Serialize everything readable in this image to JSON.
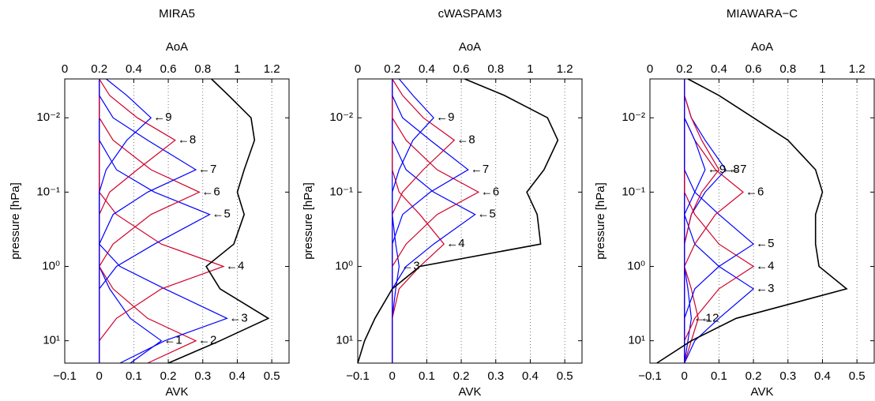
{
  "chart_data": [
    {
      "type": "line",
      "title": "MIRA5",
      "xlabel": "AVK",
      "x2label": "AoA",
      "ylabel": "pressure [hPa]",
      "log_y": true,
      "grid": true,
      "xlim": [
        -0.1,
        0.55
      ],
      "x2lim": [
        0,
        1.3
      ],
      "ylim": [
        20,
        0.003
      ],
      "xticks": [
        {
          "value": -0.1,
          "label": "−0.1"
        },
        0,
        0.1,
        0.2,
        0.3,
        0.4,
        0.5
      ],
      "x2ticks": [
        0,
        0.2,
        0.4,
        0.6,
        0.8,
        1,
        1.2
      ],
      "yticks": [
        {
          "value": 0.01,
          "label": "10⁻²"
        },
        {
          "value": 0.1,
          "label": "10⁻¹"
        },
        {
          "value": 1,
          "label": "10⁰"
        },
        {
          "value": 10,
          "label": "10¹"
        }
      ],
      "y": [
        20,
        10,
        5,
        2,
        1,
        0.5,
        0.2,
        0.1,
        0.05,
        0.02,
        0.01,
        0.005,
        0.003
      ],
      "series": [
        {
          "name": "←1",
          "color": "#0000ff",
          "values": [
            0.09,
            0.18,
            0.09,
            0.03,
            0,
            0,
            0,
            0,
            0,
            0,
            0,
            0,
            0
          ]
        },
        {
          "name": "←2",
          "color": "#d0002a",
          "values": [
            0.14,
            0.28,
            0.14,
            0.04,
            0,
            0,
            0,
            0,
            0,
            0,
            0,
            0,
            0
          ]
        },
        {
          "name": "←3",
          "color": "#0000ff",
          "values": [
            0.06,
            0.19,
            0.37,
            0.19,
            0.06,
            0,
            0,
            0,
            0,
            0,
            0,
            0,
            0
          ]
        },
        {
          "name": "←4",
          "color": "#d0002a",
          "values": [
            0,
            0,
            0.05,
            0.18,
            0.36,
            0.18,
            0.05,
            0,
            0,
            0,
            0,
            0,
            0
          ]
        },
        {
          "name": "←5",
          "color": "#0000ff",
          "values": [
            0,
            0,
            0,
            0,
            0.05,
            0.16,
            0.32,
            0.16,
            0.05,
            0,
            0,
            0,
            0
          ]
        },
        {
          "name": "←6",
          "color": "#d0002a",
          "values": [
            0,
            0,
            0,
            0,
            0,
            0.04,
            0.15,
            0.29,
            0.15,
            0.04,
            0,
            0,
            0
          ]
        },
        {
          "name": "←7",
          "color": "#0000ff",
          "values": [
            0,
            0,
            0,
            0,
            0,
            0,
            0.04,
            0.14,
            0.28,
            0.14,
            0.04,
            0,
            0
          ]
        },
        {
          "name": "←8",
          "color": "#d0002a",
          "values": [
            0,
            0,
            0,
            0,
            0,
            0,
            0,
            0.03,
            0.11,
            0.22,
            0.11,
            0.03,
            0
          ]
        },
        {
          "name": "←9",
          "color": "#0000ff",
          "values": [
            0,
            0,
            0,
            0,
            0,
            0,
            0,
            0,
            0.02,
            0.08,
            0.15,
            0.08,
            0.02
          ]
        },
        {
          "name": "AoA",
          "axis": "x2",
          "color": "#000000",
          "values": [
            0.6,
            0.9,
            1.18,
            0.9,
            0.82,
            0.98,
            1.04,
            1.0,
            1.04,
            1.1,
            1.08,
            0.95,
            0.85
          ]
        }
      ]
    },
    {
      "type": "line",
      "title": "cWASPAM3",
      "xlabel": "AVK",
      "x2label": "AoA",
      "ylabel": "pressure [hPa]",
      "log_y": true,
      "grid": true,
      "xlim": [
        -0.1,
        0.55
      ],
      "x2lim": [
        0,
        1.3
      ],
      "ylim": [
        20,
        0.003
      ],
      "xticks": [
        {
          "value": -0.1,
          "label": "−0.1"
        },
        0,
        0.1,
        0.2,
        0.3,
        0.4,
        0.5
      ],
      "x2ticks": [
        0,
        0.2,
        0.4,
        0.6,
        0.8,
        1,
        1.2
      ],
      "yticks": [
        {
          "value": 0.01,
          "label": "10⁻²"
        },
        {
          "value": 0.1,
          "label": "10⁻¹"
        },
        {
          "value": 1,
          "label": "10⁰"
        },
        {
          "value": 10,
          "label": "10¹"
        }
      ],
      "y": [
        20,
        10,
        5,
        2,
        1,
        0.5,
        0.2,
        0.1,
        0.05,
        0.02,
        0.01,
        0.005,
        0.003
      ],
      "series": [
        {
          "name": "←3",
          "color": "#0000ff",
          "values": [
            0,
            0,
            0,
            0.01,
            0.02,
            0.01,
            0,
            0,
            0,
            0,
            0,
            0,
            0
          ]
        },
        {
          "name": "←4",
          "color": "#d0002a",
          "values": [
            0,
            0,
            0,
            0.02,
            0.08,
            0.15,
            0.08,
            0.02,
            0,
            0,
            0,
            0,
            0
          ]
        },
        {
          "name": "←5",
          "color": "#0000ff",
          "values": [
            0,
            0,
            0,
            0,
            0.04,
            0.12,
            0.24,
            0.12,
            0.04,
            0,
            0,
            0,
            0
          ]
        },
        {
          "name": "←6",
          "color": "#d0002a",
          "values": [
            0,
            0,
            0,
            0,
            0,
            0.04,
            0.13,
            0.25,
            0.13,
            0.04,
            0,
            0,
            0
          ]
        },
        {
          "name": "←7",
          "color": "#0000ff",
          "values": [
            0,
            0,
            0,
            0,
            0,
            0,
            0.03,
            0.11,
            0.22,
            0.11,
            0.03,
            0,
            0
          ]
        },
        {
          "name": "←8",
          "color": "#d0002a",
          "values": [
            0,
            0,
            0,
            0,
            0,
            0,
            0,
            0.03,
            0.09,
            0.18,
            0.09,
            0.03,
            0
          ]
        },
        {
          "name": "←9",
          "color": "#0000ff",
          "values": [
            0,
            0,
            0,
            0,
            0,
            0,
            0,
            0,
            0.02,
            0.06,
            0.12,
            0.06,
            0.02
          ]
        },
        {
          "name": "AoA",
          "axis": "x2",
          "color": "#000000",
          "values": [
            0.0,
            0.04,
            0.1,
            0.2,
            0.36,
            1.06,
            1.04,
            0.98,
            1.08,
            1.16,
            1.1,
            0.85,
            0.62
          ]
        }
      ]
    },
    {
      "type": "line",
      "title": "MIAWARA−C",
      "xlabel": "AVK",
      "x2label": "AoA",
      "ylabel": "pressure [hPa]",
      "log_y": true,
      "grid": true,
      "xlim": [
        -0.1,
        0.55
      ],
      "x2lim": [
        0,
        1.3
      ],
      "ylim": [
        20,
        0.003
      ],
      "xticks": [
        {
          "value": -0.1,
          "label": "−0.1"
        },
        0,
        0.1,
        0.2,
        0.3,
        0.4,
        0.5
      ],
      "x2ticks": [
        0,
        0.2,
        0.4,
        0.6,
        0.8,
        1,
        1.2
      ],
      "yticks": [
        {
          "value": 0.01,
          "label": "10⁻²"
        },
        {
          "value": 0.1,
          "label": "10⁻¹"
        },
        {
          "value": 1,
          "label": "10⁰"
        },
        {
          "value": 10,
          "label": "10¹"
        }
      ],
      "y": [
        20,
        10,
        5,
        2,
        1,
        0.5,
        0.2,
        0.1,
        0.05,
        0.02,
        0.01,
        0.005,
        0.003
      ],
      "series": [
        {
          "name": "←1",
          "color": "#0000ff",
          "values": [
            0,
            0.01,
            0.02,
            0.01,
            0,
            0,
            0,
            0,
            0,
            0,
            0,
            0,
            0
          ]
        },
        {
          "name": "←2",
          "color": "#d0002a",
          "values": [
            0,
            0.02,
            0.04,
            0.02,
            0,
            0,
            0,
            0,
            0,
            0,
            0,
            0,
            0
          ]
        },
        {
          "name": "←3",
          "color": "#0000ff",
          "values": [
            0,
            0.03,
            0.1,
            0.2,
            0.1,
            0.03,
            0,
            0,
            0,
            0,
            0,
            0,
            0
          ]
        },
        {
          "name": "←4",
          "color": "#d0002a",
          "values": [
            0,
            0,
            0.03,
            0.1,
            0.2,
            0.1,
            0.03,
            0,
            0,
            0,
            0,
            0,
            0
          ]
        },
        {
          "name": "←5",
          "color": "#0000ff",
          "values": [
            0,
            0,
            0,
            0.03,
            0.1,
            0.2,
            0.1,
            0.03,
            0,
            0,
            0,
            0,
            0
          ]
        },
        {
          "name": "←6",
          "color": "#d0002a",
          "values": [
            0,
            0,
            0,
            0,
            0,
            0.03,
            0.09,
            0.17,
            0.09,
            0.03,
            0,
            0,
            0
          ]
        },
        {
          "name": "←7",
          "color": "#0000ff",
          "values": [
            0,
            0,
            0,
            0,
            0,
            0,
            0.02,
            0.06,
            0.12,
            0.06,
            0.02,
            0,
            0
          ]
        },
        {
          "name": "←8",
          "color": "#d0002a",
          "values": [
            0,
            0,
            0,
            0,
            0,
            0,
            0.02,
            0.05,
            0.1,
            0.05,
            0.02,
            0,
            0
          ]
        },
        {
          "name": "←9",
          "color": "#0000ff",
          "values": [
            0,
            0,
            0,
            0,
            0,
            0,
            0,
            0.03,
            0.06,
            0.03,
            0,
            0,
            0
          ]
        },
        {
          "name": "AoA",
          "axis": "x2",
          "color": "#000000",
          "values": [
            0.04,
            0.24,
            0.5,
            1.14,
            0.98,
            0.96,
            0.96,
            1.0,
            0.96,
            0.8,
            0.6,
            0.4,
            0.22
          ]
        }
      ]
    }
  ]
}
